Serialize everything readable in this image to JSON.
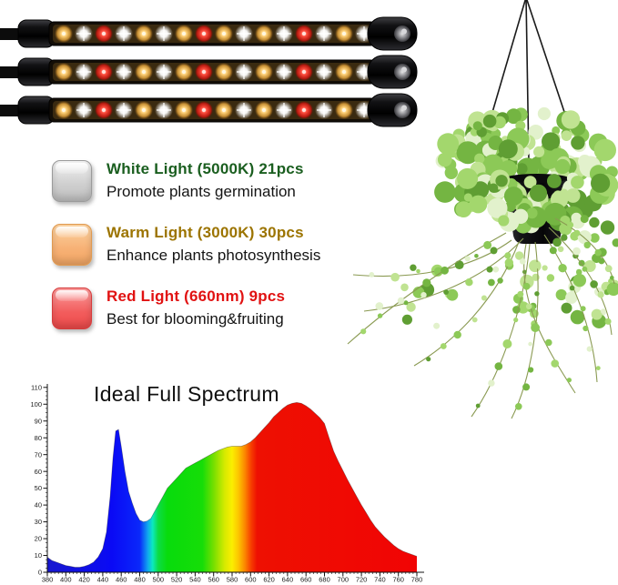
{
  "page": {
    "background": "#ffffff"
  },
  "product": {
    "light_bars": {
      "count": 3,
      "pattern": [
        "warm",
        "white",
        "red",
        "white",
        "warm",
        "white",
        "warm",
        "red",
        "warm",
        "white",
        "warm",
        "white",
        "red",
        "white",
        "warm",
        "white"
      ],
      "led_colors": {
        "white": "#ffffff",
        "warm": "#ffcf7a",
        "red": "#e03226"
      },
      "housing_color": "#0c0c0c"
    }
  },
  "features": [
    {
      "heading": "White Light (5000K) 21pcs",
      "description": "Promote plants germination",
      "heading_color": "#1a5e1f",
      "swatch_color": "#d2d2d2"
    },
    {
      "heading": "Warm Light (3000K) 30pcs",
      "description": "Enhance plants photosynthesis",
      "heading_color": "#9c7400",
      "swatch_color": "#f6b377"
    },
    {
      "heading": "Red Light (660nm) 9pcs",
      "description": "Best for blooming&fruiting",
      "heading_color": "#e11212",
      "swatch_color": "#f25555"
    }
  ],
  "plant": {
    "leaf_palette": [
      "#5f9e33",
      "#74b542",
      "#8cc957",
      "#a3d76d",
      "#c0e392",
      "#e2f1cc"
    ],
    "pot_color": "#141416",
    "string_color": "#1a1a1a",
    "vine_color": "#8a9a52"
  },
  "chart_data": {
    "type": "area",
    "title": "Ideal Full Spectrum",
    "xlabel": "",
    "ylabel": "",
    "xlim": [
      380,
      780
    ],
    "ylim": [
      0,
      110
    ],
    "x_tick_step": 20,
    "y_tick_step": 10,
    "grid": false,
    "legend": "none",
    "fill": "visible-spectrum-gradient",
    "x": [
      380,
      385,
      390,
      395,
      400,
      405,
      410,
      415,
      420,
      425,
      430,
      435,
      440,
      444,
      448,
      451,
      454,
      457,
      460,
      464,
      468,
      472,
      476,
      480,
      484,
      488,
      492,
      496,
      500,
      505,
      510,
      515,
      520,
      525,
      530,
      535,
      540,
      545,
      550,
      555,
      560,
      565,
      570,
      575,
      580,
      585,
      590,
      595,
      600,
      605,
      610,
      615,
      620,
      625,
      630,
      635,
      640,
      645,
      650,
      655,
      660,
      665,
      670,
      675,
      680,
      685,
      690,
      695,
      700,
      705,
      710,
      715,
      720,
      725,
      730,
      735,
      740,
      745,
      750,
      755,
      760,
      765,
      770,
      775,
      780
    ],
    "y": [
      9,
      7,
      6,
      5,
      4,
      3.5,
      3,
      3,
      3.5,
      4.5,
      6,
      9,
      14,
      24,
      45,
      68,
      84,
      85,
      75,
      60,
      48,
      41,
      35,
      31,
      30,
      30.5,
      32,
      36,
      40,
      45,
      50,
      53,
      56,
      59,
      62,
      63.5,
      65,
      66.5,
      68,
      69.5,
      71,
      72.5,
      73.5,
      74.5,
      75,
      75,
      75,
      76,
      77.5,
      80,
      83,
      86,
      89,
      92.5,
      95,
      97.5,
      99.5,
      100.5,
      101,
      100.5,
      99,
      97,
      94.5,
      92,
      88.5,
      80,
      72,
      66,
      60.5,
      55,
      50,
      45,
      40,
      35.5,
      31,
      27,
      24,
      21,
      18.5,
      16,
      14,
      12.5,
      11.5,
      10.5,
      9.5
    ],
    "gradient_stops": [
      [
        380,
        "#1818cf"
      ],
      [
        450,
        "#0a0af5"
      ],
      [
        480,
        "#0a28fa"
      ],
      [
        489,
        "#10aaee"
      ],
      [
        494,
        "#0ce9c0"
      ],
      [
        500,
        "#0cdc46"
      ],
      [
        510,
        "#08dc0c"
      ],
      [
        548,
        "#16dd08"
      ],
      [
        560,
        "#76df00"
      ],
      [
        572,
        "#d6ea00"
      ],
      [
        580,
        "#fbee00"
      ],
      [
        587,
        "#fcc400"
      ],
      [
        594,
        "#fb8500"
      ],
      [
        600,
        "#f74300"
      ],
      [
        607,
        "#ee1002"
      ],
      [
        780,
        "#f10404"
      ]
    ]
  }
}
